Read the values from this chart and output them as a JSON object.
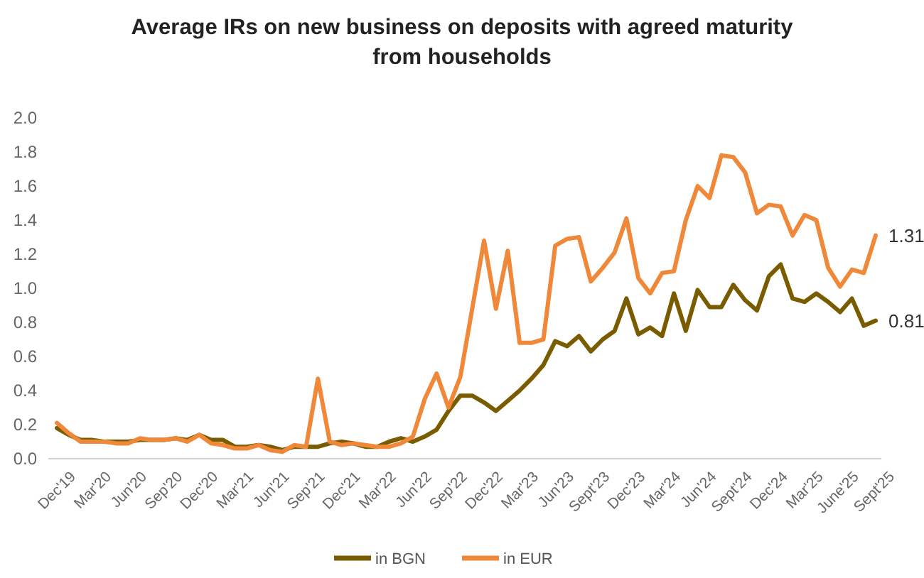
{
  "chart_data": {
    "type": "line",
    "title": "Average IRs on new business on deposits with agreed maturity from households",
    "categories": [
      "Dec'19",
      null,
      null,
      "Mar'20",
      null,
      null,
      "Jun'20",
      null,
      null,
      "Sep'20",
      null,
      null,
      "Dec'20",
      null,
      null,
      "Mar'21",
      null,
      null,
      "Jun'21",
      null,
      null,
      "Sep'21",
      null,
      null,
      "Dec'21",
      null,
      null,
      "Mar'22",
      null,
      null,
      "Jun'22",
      null,
      null,
      "Sep'22",
      null,
      null,
      "Dec'22",
      null,
      null,
      "Mar'23",
      null,
      null,
      "Jun'23",
      null,
      null,
      "Sept'23",
      null,
      null,
      "Dec'23",
      null,
      null,
      "Mar'24",
      null,
      null,
      "Jun'24",
      null,
      null,
      "Sept'24",
      null,
      null,
      "Dec'24",
      null,
      null,
      "Mar'25",
      null,
      null,
      "June'25",
      null,
      null,
      "Sept'25"
    ],
    "series": [
      {
        "name": "in BGN",
        "color": "#7a5c00",
        "values": [
          0.18,
          0.14,
          0.11,
          0.11,
          0.1,
          0.1,
          0.1,
          0.11,
          0.11,
          0.11,
          0.12,
          0.11,
          0.14,
          0.11,
          0.11,
          0.07,
          0.07,
          0.08,
          0.07,
          0.05,
          0.07,
          0.07,
          0.07,
          0.09,
          0.1,
          0.09,
          0.07,
          0.07,
          0.1,
          0.12,
          0.1,
          0.13,
          0.17,
          0.28,
          0.37,
          0.37,
          0.33,
          0.28,
          0.34,
          0.4,
          0.47,
          0.55,
          0.69,
          0.66,
          0.72,
          0.63,
          0.7,
          0.75,
          0.94,
          0.73,
          0.77,
          0.72,
          0.97,
          0.75,
          0.99,
          0.89,
          0.89,
          1.02,
          0.93,
          0.87,
          1.07,
          1.14,
          0.94,
          0.92,
          0.97,
          0.92,
          0.86,
          0.94,
          0.78,
          0.81
        ],
        "value_labels": [
          null,
          null,
          null,
          null,
          null,
          null,
          null,
          null,
          null,
          null,
          null,
          null,
          null,
          null,
          null,
          null,
          null,
          null,
          null,
          null,
          null,
          null,
          null,
          null,
          null,
          null,
          null,
          null,
          null,
          null,
          null,
          null,
          null,
          null,
          null,
          null,
          null,
          null,
          null,
          null,
          null,
          null,
          null,
          null,
          null,
          null,
          null,
          null,
          null,
          null,
          null,
          null,
          null,
          null,
          null,
          null,
          null,
          null,
          null,
          null,
          null,
          null,
          null,
          null,
          null,
          null,
          null,
          null,
          null,
          "0.81"
        ]
      },
      {
        "name": "in EUR",
        "color": "#f0883a",
        "values": [
          0.21,
          0.15,
          0.1,
          0.1,
          0.1,
          0.09,
          0.09,
          0.12,
          0.11,
          0.11,
          0.12,
          0.1,
          0.14,
          0.09,
          0.08,
          0.06,
          0.06,
          0.08,
          0.05,
          0.04,
          0.08,
          0.07,
          0.47,
          0.1,
          0.08,
          0.09,
          0.08,
          0.07,
          0.07,
          0.09,
          0.13,
          0.35,
          0.5,
          0.3,
          0.48,
          0.88,
          1.28,
          0.88,
          1.22,
          0.68,
          0.68,
          0.7,
          1.25,
          1.29,
          1.3,
          1.04,
          1.12,
          1.21,
          1.41,
          1.06,
          0.97,
          1.09,
          1.1,
          1.4,
          1.6,
          1.53,
          1.78,
          1.77,
          1.68,
          1.44,
          1.49,
          1.48,
          1.31,
          1.43,
          1.4,
          1.12,
          1.01,
          1.11,
          1.09,
          1.31
        ],
        "value_labels": [
          null,
          null,
          null,
          null,
          null,
          null,
          null,
          null,
          null,
          null,
          null,
          null,
          null,
          null,
          null,
          null,
          null,
          null,
          null,
          null,
          null,
          null,
          null,
          null,
          null,
          null,
          null,
          null,
          null,
          null,
          null,
          null,
          null,
          null,
          null,
          null,
          null,
          null,
          null,
          null,
          null,
          null,
          null,
          null,
          null,
          null,
          null,
          null,
          null,
          null,
          null,
          null,
          null,
          null,
          null,
          null,
          null,
          null,
          null,
          null,
          null,
          null,
          null,
          null,
          null,
          null,
          null,
          null,
          null,
          "1.31"
        ]
      }
    ],
    "ylim": [
      0,
      2
    ],
    "yticks": [
      {
        "value": 0,
        "label": "0.0"
      },
      {
        "value": 0.2,
        "label": "0.2"
      },
      {
        "value": 0.4,
        "label": "0.4"
      },
      {
        "value": 0.6,
        "label": "0.6"
      },
      {
        "value": 0.8,
        "label": "0.8"
      },
      {
        "value": 1,
        "label": "1.0"
      },
      {
        "value": 1.2,
        "label": "1.2"
      },
      {
        "value": 1.4,
        "label": "1.4"
      },
      {
        "value": 1.6,
        "label": "1.6"
      },
      {
        "value": 1.8,
        "label": "1.8"
      },
      {
        "value": 2,
        "label": "2.0"
      }
    ],
    "legend": "bottom",
    "marker": "none",
    "line_style": "solid"
  }
}
